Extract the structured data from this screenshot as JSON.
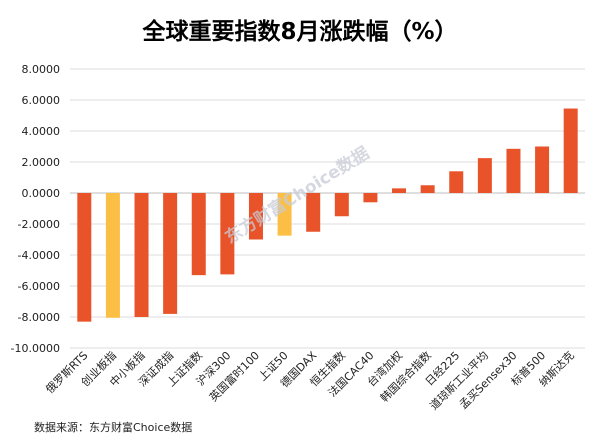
{
  "chart_data": {
    "type": "bar",
    "title": "全球重要指数8月涨跌幅（%）",
    "categories": [
      "俄罗斯RTS",
      "创业板指",
      "中小板指",
      "深证成指",
      "上证指数",
      "沪深300",
      "英国富时100",
      "上证50",
      "德国DAX",
      "恒生指数",
      "法国CAC40",
      "台湾加权",
      "韩国综合指数",
      "日经225",
      "道琼斯工业平均",
      "孟买Sensex30",
      "标普500",
      "纳斯达克"
    ],
    "values": [
      -8.3,
      -8.05,
      -8.0,
      -7.8,
      -5.3,
      -5.25,
      -3.0,
      -2.75,
      -2.5,
      -1.5,
      -0.6,
      0.3,
      0.5,
      1.4,
      2.25,
      2.85,
      3.0,
      5.45
    ],
    "highlight_color": "#FBBF45",
    "bar_color": "#E8532A",
    "highlighted_categories": [
      "创业板指",
      "上证50"
    ],
    "yticks": [
      "8.0000",
      "6.0000",
      "4.0000",
      "2.0000",
      "0.0000",
      "-2.0000",
      "-4.0000",
      "-6.0000",
      "-8.0000",
      "-10.0000"
    ],
    "ylim": [
      -10,
      8
    ],
    "grid": true,
    "xlabel": "",
    "ylabel": ""
  },
  "watermark": "东方财富Choice数据",
  "source": "数据来源：东方财富Choice数据"
}
